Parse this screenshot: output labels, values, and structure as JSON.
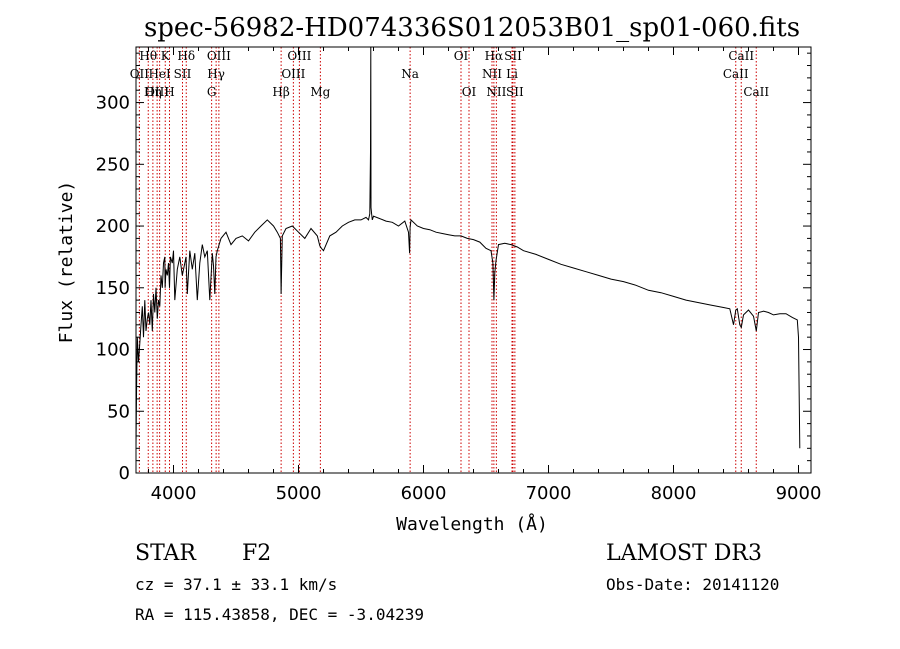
{
  "chart_data": {
    "type": "line",
    "title": "spec-56982-HD074336S012053B01_sp01-060.fits",
    "xlabel": "Wavelength (Å)",
    "ylabel": "Flux (relative)",
    "xlim": [
      3700,
      9100
    ],
    "ylim": [
      0,
      345
    ],
    "x_ticks": [
      4000,
      5000,
      6000,
      7000,
      8000,
      9000
    ],
    "y_ticks": [
      0,
      50,
      100,
      150,
      200,
      250,
      300
    ],
    "series": [
      {
        "name": "flux",
        "x": [
          3700,
          3705,
          3710,
          3720,
          3730,
          3740,
          3750,
          3760,
          3770,
          3780,
          3790,
          3800,
          3810,
          3820,
          3830,
          3840,
          3850,
          3860,
          3870,
          3880,
          3890,
          3900,
          3910,
          3920,
          3930,
          3933,
          3940,
          3950,
          3960,
          3968,
          3975,
          3990,
          4000,
          4010,
          4030,
          4050,
          4070,
          4090,
          4100,
          4110,
          4130,
          4150,
          4170,
          4190,
          4210,
          4230,
          4250,
          4270,
          4290,
          4310,
          4320,
          4330,
          4340,
          4350,
          4380,
          4420,
          4460,
          4500,
          4550,
          4600,
          4650,
          4700,
          4750,
          4800,
          4830,
          4855,
          4861,
          4870,
          4900,
          4950,
          5000,
          5050,
          5100,
          5150,
          5170,
          5183,
          5200,
          5250,
          5300,
          5350,
          5400,
          5450,
          5500,
          5540,
          5560,
          5570,
          5576,
          5578,
          5580,
          5585,
          5590,
          5600,
          5650,
          5700,
          5750,
          5800,
          5850,
          5880,
          5889,
          5893,
          5900,
          5950,
          6000,
          6050,
          6100,
          6150,
          6200,
          6250,
          6300,
          6350,
          6400,
          6450,
          6500,
          6540,
          6555,
          6563,
          6570,
          6580,
          6600,
          6650,
          6700,
          6750,
          6800,
          6900,
          7000,
          7100,
          7200,
          7300,
          7400,
          7500,
          7600,
          7700,
          7800,
          7900,
          8000,
          8100,
          8200,
          8300,
          8400,
          8450,
          8480,
          8498,
          8510,
          8530,
          8542,
          8560,
          8600,
          8640,
          8662,
          8680,
          8720,
          8760,
          8800,
          8850,
          8900,
          8950,
          8990,
          9000,
          9010
        ],
        "values": [
          20,
          70,
          110,
          90,
          105,
          120,
          135,
          110,
          140,
          115,
          125,
          130,
          120,
          140,
          115,
          145,
          130,
          150,
          125,
          140,
          135,
          160,
          150,
          170,
          175,
          150,
          165,
          160,
          170,
          150,
          175,
          170,
          180,
          140,
          165,
          175,
          160,
          170,
          175,
          145,
          180,
          165,
          178,
          140,
          170,
          185,
          175,
          180,
          140,
          178,
          168,
          145,
          175,
          180,
          190,
          195,
          185,
          190,
          192,
          188,
          195,
          200,
          205,
          200,
          195,
          190,
          145,
          192,
          198,
          200,
          195,
          190,
          198,
          192,
          184,
          182,
          180,
          192,
          195,
          200,
          203,
          205,
          205,
          207,
          205,
          210,
          260,
          350,
          215,
          210,
          205,
          208,
          206,
          204,
          203,
          200,
          204,
          195,
          178,
          199,
          205,
          200,
          198,
          197,
          195,
          194,
          193,
          192,
          192,
          190,
          189,
          187,
          182,
          180,
          170,
          140,
          162,
          172,
          185,
          186,
          185,
          183,
          180,
          177,
          173,
          169,
          166,
          163,
          160,
          157,
          155,
          152,
          148,
          146,
          143,
          140,
          138,
          136,
          134,
          133,
          120,
          132,
          133,
          120,
          118,
          128,
          132,
          127,
          115,
          130,
          131,
          130,
          128,
          129,
          129,
          126,
          124,
          110,
          20
        ]
      }
    ],
    "line_ids": [
      {
        "label": "Hθ",
        "x": 3798,
        "row": 1
      },
      {
        "label": "OII",
        "x": 3727,
        "row": 2
      },
      {
        "label": "OIII",
        "x": 3869,
        "row": 3
      },
      {
        "label": "K",
        "x": 3934,
        "row": 1
      },
      {
        "label": "HeI",
        "x": 3889,
        "row": 2
      },
      {
        "label": "Hη",
        "x": 3835,
        "row": 3
      },
      {
        "label": "SII",
        "x": 4072,
        "row": 2
      },
      {
        "label": "H",
        "x": 3968,
        "row": 3
      },
      {
        "label": "Hδ",
        "x": 4102,
        "row": 1
      },
      {
        "label": "OIII",
        "x": 4363,
        "row": 1
      },
      {
        "label": "Hγ",
        "x": 4341,
        "row": 2
      },
      {
        "label": "G",
        "x": 4305,
        "row": 3
      },
      {
        "label": "Hβ",
        "x": 4861,
        "row": 3
      },
      {
        "label": "OIII",
        "x": 5007,
        "row": 1
      },
      {
        "label": "OIII",
        "x": 4959,
        "row": 2
      },
      {
        "label": "Mg",
        "x": 5175,
        "row": 3
      },
      {
        "label": "Na",
        "x": 5893,
        "row": 2
      },
      {
        "label": "OI",
        "x": 6300,
        "row": 1
      },
      {
        "label": "OI",
        "x": 6364,
        "row": 3
      },
      {
        "label": "Hα",
        "x": 6563,
        "row": 1
      },
      {
        "label": "SII",
        "x": 6716,
        "row": 1
      },
      {
        "label": "NII",
        "x": 6548,
        "row": 2
      },
      {
        "label": "Li",
        "x": 6708,
        "row": 2
      },
      {
        "label": "NII",
        "x": 6583,
        "row": 3
      },
      {
        "label": "SII",
        "x": 6731,
        "row": 3
      },
      {
        "label": "CaII",
        "x": 8542,
        "row": 1
      },
      {
        "label": "CaII",
        "x": 8498,
        "row": 2
      },
      {
        "label": "CaII",
        "x": 8662,
        "row": 3
      }
    ]
  },
  "info": {
    "object_class": "STAR",
    "subclass": "F2",
    "survey": "LAMOST DR3",
    "redshift": "cz = 37.1 ± 33.1 km/s",
    "obs_date": "Obs-Date: 20141120",
    "coords": "RA = 115.43858, DEC =  -3.04239"
  },
  "colors": {
    "line": "#000000",
    "marker": "#cc0000",
    "text": "#000000"
  }
}
